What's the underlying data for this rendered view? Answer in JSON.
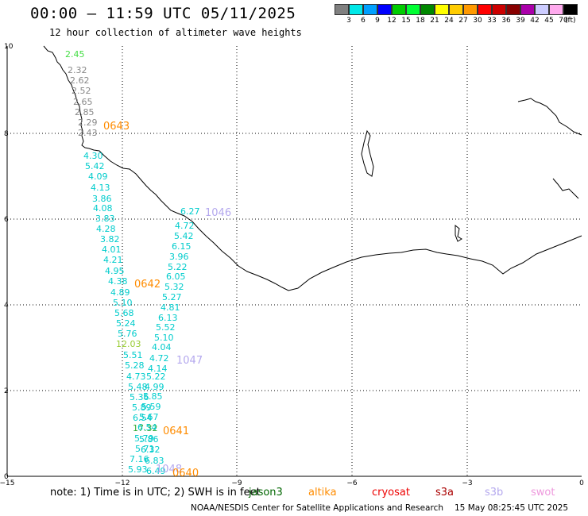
{
  "title": "00:00 – 11:59 UTC 05/11/2025",
  "subtitle": "12 hour collection of altimeter wave heights",
  "legend": {
    "colors": [
      "#808080",
      "#00e8e8",
      "#00a0ff",
      "#0000ff",
      "#00cc00",
      "#00ff33",
      "#008800",
      "#ffff00",
      "#ffcc00",
      "#ff9900",
      "#ff0000",
      "#cc0000",
      "#880000",
      "#aa00aa",
      "#ccccff",
      "#ffaaee",
      "#000000"
    ],
    "labels": [
      "3",
      "6",
      "9",
      "12",
      "15",
      "18",
      "21",
      "24",
      "27",
      "30",
      "33",
      "36",
      "39",
      "42",
      "45",
      "70"
    ],
    "unit": "(ft)"
  },
  "axes": {
    "x_ticks": [
      "−15",
      "−12",
      "−9",
      "−6",
      "−3",
      "0"
    ],
    "y_ticks": [
      "0",
      "2",
      "4",
      "6",
      "8",
      "10"
    ]
  },
  "pass_labels": [
    {
      "text": "0643",
      "color": "#ff8c00"
    },
    {
      "text": "1046",
      "color": "#b4a8ee"
    },
    {
      "text": "0642",
      "color": "#ff8c00"
    },
    {
      "text": "1047",
      "color": "#b4a8ee"
    },
    {
      "text": "0641",
      "color": "#ff8c00"
    },
    {
      "text": "1048",
      "color": "#b4a8ee"
    },
    {
      "text": "0640",
      "color": "#ff8c00"
    }
  ],
  "wave_values": [
    {
      "text": "2.45",
      "color": "#44dd44"
    },
    {
      "text": "2.32",
      "color": "#888888"
    },
    {
      "text": "2.62",
      "color": "#888888"
    },
    {
      "text": "2.52",
      "color": "#888888"
    },
    {
      "text": "2.65",
      "color": "#888888"
    },
    {
      "text": "2.85",
      "color": "#888888"
    },
    {
      "text": "2.29",
      "color": "#888888"
    },
    {
      "text": "2.43",
      "color": "#888888"
    },
    {
      "text": "4.30",
      "color": "#00cccc"
    },
    {
      "text": "5.42",
      "color": "#00cccc"
    },
    {
      "text": "4.09",
      "color": "#00cccc"
    },
    {
      "text": "4.13",
      "color": "#00cccc"
    },
    {
      "text": "3.86",
      "color": "#00cccc"
    },
    {
      "text": "4.08",
      "color": "#00cccc"
    },
    {
      "text": "3.83",
      "color": "#00cccc"
    },
    {
      "text": "4.28",
      "color": "#00cccc"
    },
    {
      "text": "3.82",
      "color": "#00cccc"
    },
    {
      "text": "4.01",
      "color": "#00cccc"
    },
    {
      "text": "4.21",
      "color": "#00cccc"
    },
    {
      "text": "4.95",
      "color": "#00cccc"
    },
    {
      "text": "4.38",
      "color": "#00cccc"
    },
    {
      "text": "4.89",
      "color": "#00cccc"
    },
    {
      "text": "5.10",
      "color": "#00cccc"
    },
    {
      "text": "5.68",
      "color": "#00cccc"
    },
    {
      "text": "5.24",
      "color": "#00cccc"
    },
    {
      "text": "5.76",
      "color": "#00cccc"
    },
    {
      "text": "12.03",
      "color": "#99cc33"
    },
    {
      "text": "5.51",
      "color": "#00cccc"
    },
    {
      "text": "5.28",
      "color": "#00cccc"
    },
    {
      "text": "4.73",
      "color": "#00cccc"
    },
    {
      "text": "5.48",
      "color": "#00cccc"
    },
    {
      "text": "5.36",
      "color": "#00cccc"
    },
    {
      "text": "5.89",
      "color": "#00cccc"
    },
    {
      "text": "6.54",
      "color": "#00cccc"
    },
    {
      "text": "5.79",
      "color": "#00cccc"
    },
    {
      "text": "17.32",
      "color": "#33aa33"
    },
    {
      "text": "5.71",
      "color": "#00cccc"
    },
    {
      "text": "7.16",
      "color": "#00cccc"
    },
    {
      "text": "5.93",
      "color": "#00cccc"
    },
    {
      "text": "6.27",
      "color": "#00cccc"
    },
    {
      "text": "4.72",
      "color": "#00cccc"
    },
    {
      "text": "5.42",
      "color": "#00cccc"
    },
    {
      "text": "6.15",
      "color": "#00cccc"
    },
    {
      "text": "3.96",
      "color": "#00cccc"
    },
    {
      "text": "5.22",
      "color": "#00cccc"
    },
    {
      "text": "6.05",
      "color": "#00cccc"
    },
    {
      "text": "5.32",
      "color": "#00cccc"
    },
    {
      "text": "5.27",
      "color": "#00cccc"
    },
    {
      "text": "4.81",
      "color": "#00cccc"
    },
    {
      "text": "6.13",
      "color": "#00cccc"
    },
    {
      "text": "5.52",
      "color": "#00cccc"
    },
    {
      "text": "5.10",
      "color": "#00cccc"
    },
    {
      "text": "4.04",
      "color": "#00cccc"
    },
    {
      "text": "4.72",
      "color": "#00cccc"
    },
    {
      "text": "4.14",
      "color": "#00cccc"
    },
    {
      "text": "5.22",
      "color": "#00cccc"
    },
    {
      "text": "4.99",
      "color": "#00cccc"
    },
    {
      "text": "5.85",
      "color": "#00cccc"
    },
    {
      "text": "5.59",
      "color": "#00cccc"
    },
    {
      "text": "5.67",
      "color": "#00cccc"
    },
    {
      "text": "6.54",
      "color": "#00cccc"
    },
    {
      "text": "5.86",
      "color": "#00cccc"
    },
    {
      "text": "6.32",
      "color": "#00cccc"
    },
    {
      "text": "6.83",
      "color": "#00cccc"
    },
    {
      "text": "6.49",
      "color": "#00cccc"
    },
    {
      "text": "6.77",
      "color": "#00cccc"
    }
  ],
  "note_text": "note: 1) Time is in UTC; 2) SWH is in feet",
  "satellites": [
    {
      "text": "jason3",
      "color": "#006600"
    },
    {
      "text": "altika",
      "color": "#ff8c00"
    },
    {
      "text": "cryosat",
      "color": "#ee0000"
    },
    {
      "text": "s3a",
      "color": "#aa0000"
    },
    {
      "text": "s3b",
      "color": "#b4a8ee"
    },
    {
      "text": "swot",
      "color": "#ee99dd"
    }
  ],
  "footer": {
    "org": "NOAA/NESDIS Center for Satellite Applications and Research",
    "timestamp": "15 May 08:25:45 UTC 2025"
  }
}
